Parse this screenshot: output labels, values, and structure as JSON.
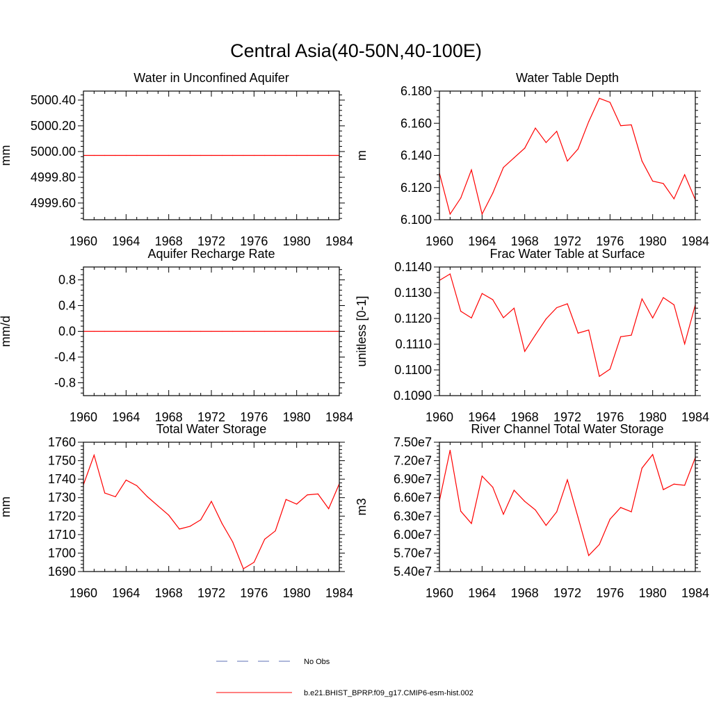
{
  "figure": {
    "title": "Central Asia(40-50N,40-100E)"
  },
  "legend": {
    "entries": [
      {
        "label": "No Obs",
        "color": "#5b6fb5",
        "style": "dashed"
      },
      {
        "label": "b.e21.BHIST_BPRP.f09_g17.CMIP6-esm-hist.002",
        "color": "#ff0000",
        "style": "solid"
      }
    ]
  },
  "chart_data": [
    {
      "type": "line",
      "title": "Water in Unconfined Aquifer",
      "ylabel": "mm",
      "xlim": [
        1960,
        1984
      ],
      "ylim": [
        4999.47,
        5000.47
      ],
      "xticks": [
        1960,
        1964,
        1968,
        1972,
        1976,
        1980,
        1984
      ],
      "yticks": [
        4999.6,
        4999.8,
        5000.0,
        5000.2,
        5000.4
      ],
      "ytick_labels": [
        "4999.60",
        "4999.80",
        "5000.00",
        "5000.20",
        "5000.40"
      ],
      "series": [
        {
          "name": "b.e21.BHIST_BPRP.f09_g17.CMIP6-esm-hist.002",
          "color": "#ff0000",
          "x": [
            1960,
            1961,
            1962,
            1963,
            1964,
            1965,
            1966,
            1967,
            1968,
            1969,
            1970,
            1971,
            1972,
            1973,
            1974,
            1975,
            1976,
            1977,
            1978,
            1979,
            1980,
            1981,
            1982,
            1983,
            1984
          ],
          "y": [
            4999.97,
            4999.97,
            4999.97,
            4999.97,
            4999.97,
            4999.97,
            4999.97,
            4999.97,
            4999.97,
            4999.97,
            4999.97,
            4999.97,
            4999.97,
            4999.97,
            4999.97,
            4999.97,
            4999.97,
            4999.97,
            4999.97,
            4999.97,
            4999.97,
            4999.97,
            4999.97,
            4999.97,
            4999.97
          ]
        }
      ]
    },
    {
      "type": "line",
      "title": "Water Table Depth",
      "ylabel": "m",
      "xlim": [
        1960,
        1984
      ],
      "ylim": [
        6.1,
        6.18
      ],
      "xticks": [
        1960,
        1964,
        1968,
        1972,
        1976,
        1980,
        1984
      ],
      "yticks": [
        6.1,
        6.12,
        6.14,
        6.16,
        6.18
      ],
      "ytick_labels": [
        "6.100",
        "6.120",
        "6.140",
        "6.160",
        "6.180"
      ],
      "series": [
        {
          "name": "b.e21.BHIST_BPRP.f09_g17.CMIP6-esm-hist.002",
          "color": "#ff0000",
          "x": [
            1960,
            1961,
            1962,
            1963,
            1964,
            1965,
            1966,
            1967,
            1968,
            1969,
            1970,
            1971,
            1972,
            1973,
            1974,
            1975,
            1976,
            1977,
            1978,
            1979,
            1980,
            1981,
            1982,
            1983,
            1984
          ],
          "y": [
            6.129,
            6.1035,
            6.1135,
            6.131,
            6.1035,
            6.1165,
            6.1325,
            6.1385,
            6.1445,
            6.157,
            6.148,
            6.155,
            6.1365,
            6.144,
            6.161,
            6.1755,
            6.173,
            6.1585,
            6.159,
            6.1365,
            6.124,
            6.1225,
            6.113,
            6.128,
            6.1125
          ]
        }
      ]
    },
    {
      "type": "line",
      "title": "Aquifer Recharge Rate",
      "ylabel": "mm/d",
      "xlim": [
        1960,
        1984
      ],
      "ylim": [
        -1.0,
        1.0
      ],
      "xticks": [
        1960,
        1964,
        1968,
        1972,
        1976,
        1980,
        1984
      ],
      "yticks": [
        -0.8,
        -0.4,
        0.0,
        0.4,
        0.8
      ],
      "ytick_labels": [
        "-0.8",
        "-0.4",
        "0.0",
        "0.4",
        "0.8"
      ],
      "series": [
        {
          "name": "b.e21.BHIST_BPRP.f09_g17.CMIP6-esm-hist.002",
          "color": "#ff0000",
          "x": [
            1960,
            1961,
            1962,
            1963,
            1964,
            1965,
            1966,
            1967,
            1968,
            1969,
            1970,
            1971,
            1972,
            1973,
            1974,
            1975,
            1976,
            1977,
            1978,
            1979,
            1980,
            1981,
            1982,
            1983,
            1984
          ],
          "y": [
            0,
            0,
            0,
            0,
            0,
            0,
            0,
            0,
            0,
            0,
            0,
            0,
            0,
            0,
            0,
            0,
            0,
            0,
            0,
            0,
            0,
            0,
            0,
            0,
            0
          ]
        }
      ]
    },
    {
      "type": "line",
      "title": "Frac Water Table at Surface",
      "ylabel": "unitless [0-1]",
      "xlim": [
        1960,
        1984
      ],
      "ylim": [
        0.109,
        0.114
      ],
      "xticks": [
        1960,
        1964,
        1968,
        1972,
        1976,
        1980,
        1984
      ],
      "yticks": [
        0.109,
        0.11,
        0.111,
        0.112,
        0.113,
        0.114
      ],
      "ytick_labels": [
        "0.1090",
        "0.1100",
        "0.1110",
        "0.1120",
        "0.1130",
        "0.1140"
      ],
      "series": [
        {
          "name": "b.e21.BHIST_BPRP.f09_g17.CMIP6-esm-hist.002",
          "color": "#ff0000",
          "x": [
            1960,
            1961,
            1962,
            1963,
            1964,
            1965,
            1966,
            1967,
            1968,
            1969,
            1970,
            1971,
            1972,
            1973,
            1974,
            1975,
            1976,
            1977,
            1978,
            1979,
            1980,
            1981,
            1982,
            1983,
            1984
          ],
          "y": [
            0.11348,
            0.11373,
            0.11228,
            0.11202,
            0.11297,
            0.11273,
            0.11203,
            0.1124,
            0.11072,
            0.11136,
            0.11198,
            0.11242,
            0.11257,
            0.11143,
            0.11155,
            0.10975,
            0.11003,
            0.11129,
            0.11135,
            0.11276,
            0.11202,
            0.11281,
            0.11253,
            0.11101,
            0.11253
          ]
        }
      ]
    },
    {
      "type": "line",
      "title": "Total Water Storage",
      "ylabel": "mm",
      "xlim": [
        1960,
        1984
      ],
      "ylim": [
        1690,
        1760
      ],
      "xticks": [
        1960,
        1964,
        1968,
        1972,
        1976,
        1980,
        1984
      ],
      "yticks": [
        1690,
        1700,
        1710,
        1720,
        1730,
        1740,
        1750,
        1760
      ],
      "ytick_labels": [
        "1690",
        "1700",
        "1710",
        "1720",
        "1730",
        "1740",
        "1750",
        "1760"
      ],
      "series": [
        {
          "name": "b.e21.BHIST_BPRP.f09_g17.CMIP6-esm-hist.002",
          "color": "#ff0000",
          "x": [
            1960,
            1961,
            1962,
            1963,
            1964,
            1965,
            1966,
            1967,
            1968,
            1969,
            1970,
            1971,
            1972,
            1973,
            1974,
            1975,
            1976,
            1977,
            1978,
            1979,
            1980,
            1981,
            1982,
            1983,
            1984
          ],
          "y": [
            1737,
            1753,
            1732.5,
            1730.5,
            1739.5,
            1736.5,
            1730.5,
            1725.5,
            1720.5,
            1713,
            1714.5,
            1718,
            1728,
            1716,
            1706,
            1691.5,
            1695,
            1707.5,
            1712,
            1729,
            1726.5,
            1731.5,
            1732,
            1724,
            1737.5
          ]
        }
      ]
    },
    {
      "type": "line",
      "title": "River Channel Total Water Storage",
      "ylabel": "m3",
      "xlim": [
        1960,
        1984
      ],
      "ylim": [
        54000000.0,
        75000000.0
      ],
      "xticks": [
        1960,
        1964,
        1968,
        1972,
        1976,
        1980,
        1984
      ],
      "yticks": [
        54000000.0,
        57000000.0,
        60000000.0,
        63000000.0,
        66000000.0,
        69000000.0,
        72000000.0,
        75000000.0
      ],
      "ytick_labels": [
        "5.40e7",
        "5.70e7",
        "6.00e7",
        "6.30e7",
        "6.60e7",
        "6.90e7",
        "7.20e7",
        "7.50e7"
      ],
      "series": [
        {
          "name": "b.e21.BHIST_BPRP.f09_g17.CMIP6-esm-hist.002",
          "color": "#ff0000",
          "x": [
            1960,
            1961,
            1962,
            1963,
            1964,
            1965,
            1966,
            1967,
            1968,
            1969,
            1970,
            1971,
            1972,
            1973,
            1974,
            1975,
            1976,
            1977,
            1978,
            1979,
            1980,
            1981,
            1982,
            1983,
            1984
          ],
          "y": [
            65500000.0,
            73700000.0,
            63800000.0,
            61800000.0,
            69500000.0,
            67700000.0,
            63300000.0,
            67200000.0,
            65400000.0,
            64000000.0,
            61500000.0,
            63700000.0,
            68900000.0,
            62800000.0,
            56600000.0,
            58400000.0,
            62500000.0,
            64400000.0,
            63700000.0,
            70800000.0,
            73000000.0,
            67300000.0,
            68200000.0,
            68000000.0,
            72500000.0
          ]
        }
      ]
    }
  ]
}
